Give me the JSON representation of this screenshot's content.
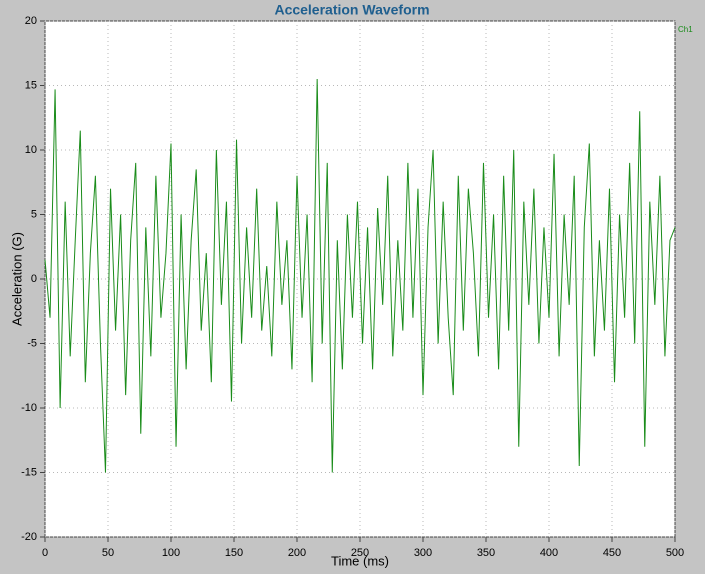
{
  "chart_data": {
    "type": "line",
    "title": "Acceleration Waveform",
    "x_label": "Time (ms)",
    "y_label": "Acceleration (G)",
    "x": [
      0,
      4,
      8,
      12,
      16,
      20,
      24,
      28,
      32,
      36,
      40,
      44,
      48,
      52,
      56,
      60,
      64,
      68,
      72,
      76,
      80,
      84,
      88,
      92,
      96,
      100,
      104,
      108,
      112,
      116,
      120,
      124,
      128,
      132,
      136,
      140,
      144,
      148,
      152,
      156,
      160,
      164,
      168,
      172,
      176,
      180,
      184,
      188,
      192,
      196,
      200,
      204,
      208,
      212,
      216,
      220,
      224,
      228,
      232,
      236,
      240,
      244,
      248,
      252,
      256,
      260,
      264,
      268,
      272,
      276,
      280,
      284,
      288,
      292,
      296,
      300,
      304,
      308,
      312,
      316,
      320,
      324,
      328,
      332,
      336,
      340,
      344,
      348,
      352,
      356,
      360,
      364,
      368,
      372,
      376,
      380,
      384,
      388,
      392,
      396,
      400,
      404,
      408,
      412,
      416,
      420,
      424,
      428,
      432,
      436,
      440,
      444,
      448,
      452,
      456,
      460,
      464,
      468,
      472,
      476,
      480,
      484,
      488,
      492,
      496,
      500
    ],
    "series": [
      {
        "name": "Ch1",
        "color": "#1a8c1a",
        "values": [
          1.5,
          -3,
          14.7,
          -10,
          6,
          -6,
          3,
          11.5,
          -8,
          2,
          8,
          -5,
          -15,
          7,
          -4,
          5,
          -9,
          3,
          9,
          -12,
          4,
          -6,
          8,
          -3,
          2,
          10.5,
          -13,
          5,
          -7,
          3,
          8.5,
          -4,
          2,
          -8,
          10,
          -2,
          6,
          -9.5,
          10.8,
          -5,
          4,
          -3,
          7,
          -4,
          1,
          -6,
          6,
          -2,
          3,
          -7,
          8,
          -3,
          5,
          -8,
          15.5,
          -5,
          9,
          -15,
          3,
          -7,
          5,
          -3,
          6,
          -5,
          4,
          -7,
          5.5,
          -2,
          8,
          -6,
          3,
          -4,
          9,
          -3,
          7,
          -9,
          4,
          10,
          -5,
          6,
          -3,
          -9,
          8,
          -4,
          7,
          2,
          -6,
          9,
          -3,
          5,
          -7,
          8,
          -4,
          10,
          -13,
          6,
          -2,
          7,
          -5,
          4,
          -3,
          9.7,
          -6,
          5,
          -2,
          8,
          -14.5,
          4,
          10.5,
          -6,
          3,
          -4,
          7,
          -8,
          5,
          -3,
          9,
          -5,
          13,
          -13,
          6,
          -2,
          8,
          -6,
          3,
          4
        ]
      }
    ],
    "xlim": [
      0,
      500
    ],
    "xticks": [
      0,
      50,
      100,
      150,
      200,
      250,
      300,
      350,
      400,
      450,
      500
    ],
    "ylim": [
      -20,
      20
    ],
    "yticks": [
      -20,
      -15,
      -10,
      -5,
      0,
      5,
      10,
      15,
      20
    ],
    "grid": true
  }
}
